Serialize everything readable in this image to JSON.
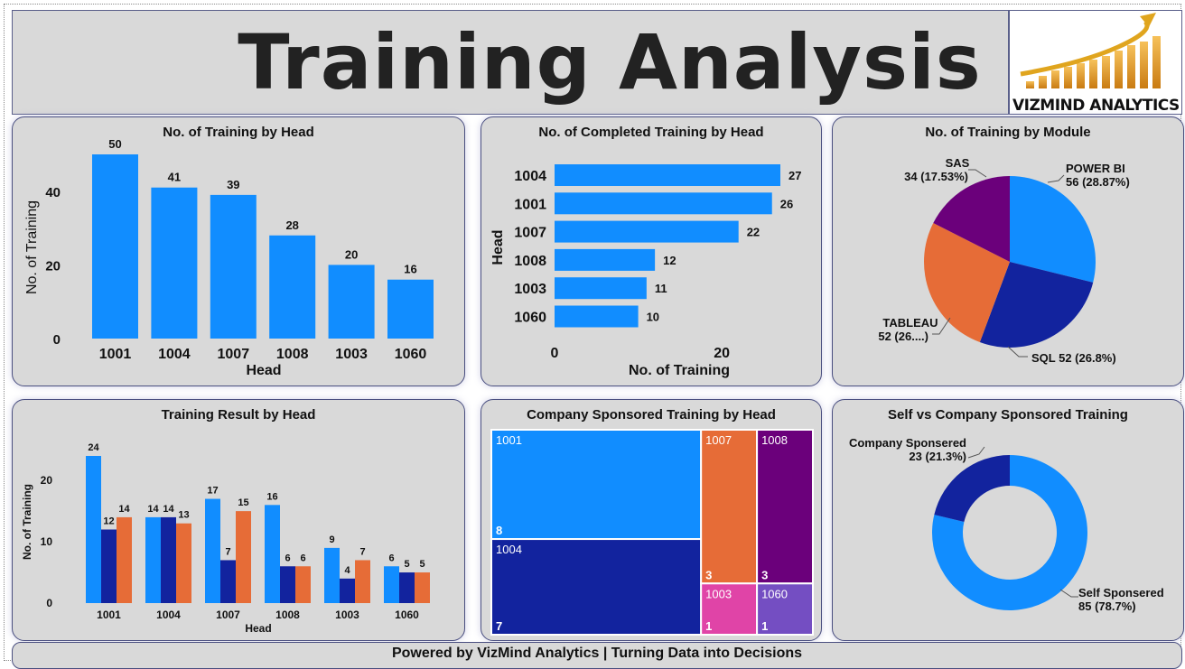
{
  "header": {
    "title": "Training Analysis",
    "logo_text": "VIZMIND ANALYTICS"
  },
  "footer": {
    "text": "Powered by VizMind Analytics | Turning Data into Decisions"
  },
  "colors": {
    "blue": "#118dff",
    "navy": "#12239e",
    "orange": "#e66c37",
    "purple": "#6b007b",
    "pink": "#e044a7",
    "violet": "#744ec2",
    "card": "#d9d9d9"
  },
  "chart_data": [
    {
      "type": "bar",
      "title": "No. of Training by Head",
      "xlabel": "Head",
      "ylabel": "No. of Training",
      "categories": [
        "1001",
        "1004",
        "1007",
        "1008",
        "1003",
        "1060"
      ],
      "values": [
        50,
        41,
        39,
        28,
        20,
        16
      ],
      "yticks": [
        0,
        20,
        40
      ],
      "ylim": [
        0,
        50
      ]
    },
    {
      "type": "bar",
      "orientation": "horizontal",
      "title": "No. of Completed Training by Head",
      "xlabel": "No. of Training",
      "ylabel": "Head",
      "categories": [
        "1004",
        "1001",
        "1007",
        "1008",
        "1003",
        "1060"
      ],
      "values": [
        27,
        26,
        22,
        12,
        11,
        10
      ],
      "xticks": [
        0,
        20
      ],
      "xlim": [
        0,
        27
      ]
    },
    {
      "type": "pie",
      "title": "No. of Training by Module",
      "slices": [
        {
          "label": "POWER BI",
          "value": 56,
          "display": "56 (28.87%)",
          "color": "#118dff"
        },
        {
          "label": "SQL",
          "value": 52,
          "display": "52 (26.8%)",
          "color": "#12239e"
        },
        {
          "label": "TABLEAU",
          "value": 52,
          "display": "52 (26....)",
          "color": "#e66c37"
        },
        {
          "label": "SAS",
          "value": 34,
          "display": "34 (17.53%)",
          "color": "#6b007b"
        }
      ]
    },
    {
      "type": "bar",
      "grouped": true,
      "title": "Training Result by Head",
      "xlabel": "Head",
      "ylabel": "No. of Training",
      "categories": [
        "1001",
        "1004",
        "1007",
        "1008",
        "1003",
        "1060"
      ],
      "series": [
        {
          "values": [
            24,
            14,
            17,
            16,
            9,
            6
          ],
          "color": "#118dff"
        },
        {
          "values": [
            12,
            14,
            7,
            6,
            4,
            5
          ],
          "color": "#12239e"
        },
        {
          "values": [
            14,
            13,
            15,
            6,
            7,
            5
          ],
          "color": "#e66c37"
        }
      ],
      "yticks": [
        0,
        10,
        20
      ],
      "ylim": [
        0,
        24
      ]
    },
    {
      "type": "treemap",
      "title": "Company Sponsored Training by Head",
      "items": [
        {
          "label": "1001",
          "value": 8,
          "color": "#118dff"
        },
        {
          "label": "1004",
          "value": 7,
          "color": "#12239e"
        },
        {
          "label": "1007",
          "value": 3,
          "color": "#e66c37"
        },
        {
          "label": "1008",
          "value": 3,
          "color": "#6b007b"
        },
        {
          "label": "1003",
          "value": 1,
          "color": "#e044a7"
        },
        {
          "label": "1060",
          "value": 1,
          "color": "#744ec2"
        }
      ]
    },
    {
      "type": "donut",
      "title": "Self vs Company Sponsored Training",
      "slices": [
        {
          "label": "Self Sponsered",
          "value": 85,
          "display": "85 (78.7%)",
          "color": "#118dff"
        },
        {
          "label": "Company Sponsered",
          "value": 23,
          "display": "23 (21.3%)",
          "color": "#12239e"
        }
      ]
    }
  ]
}
